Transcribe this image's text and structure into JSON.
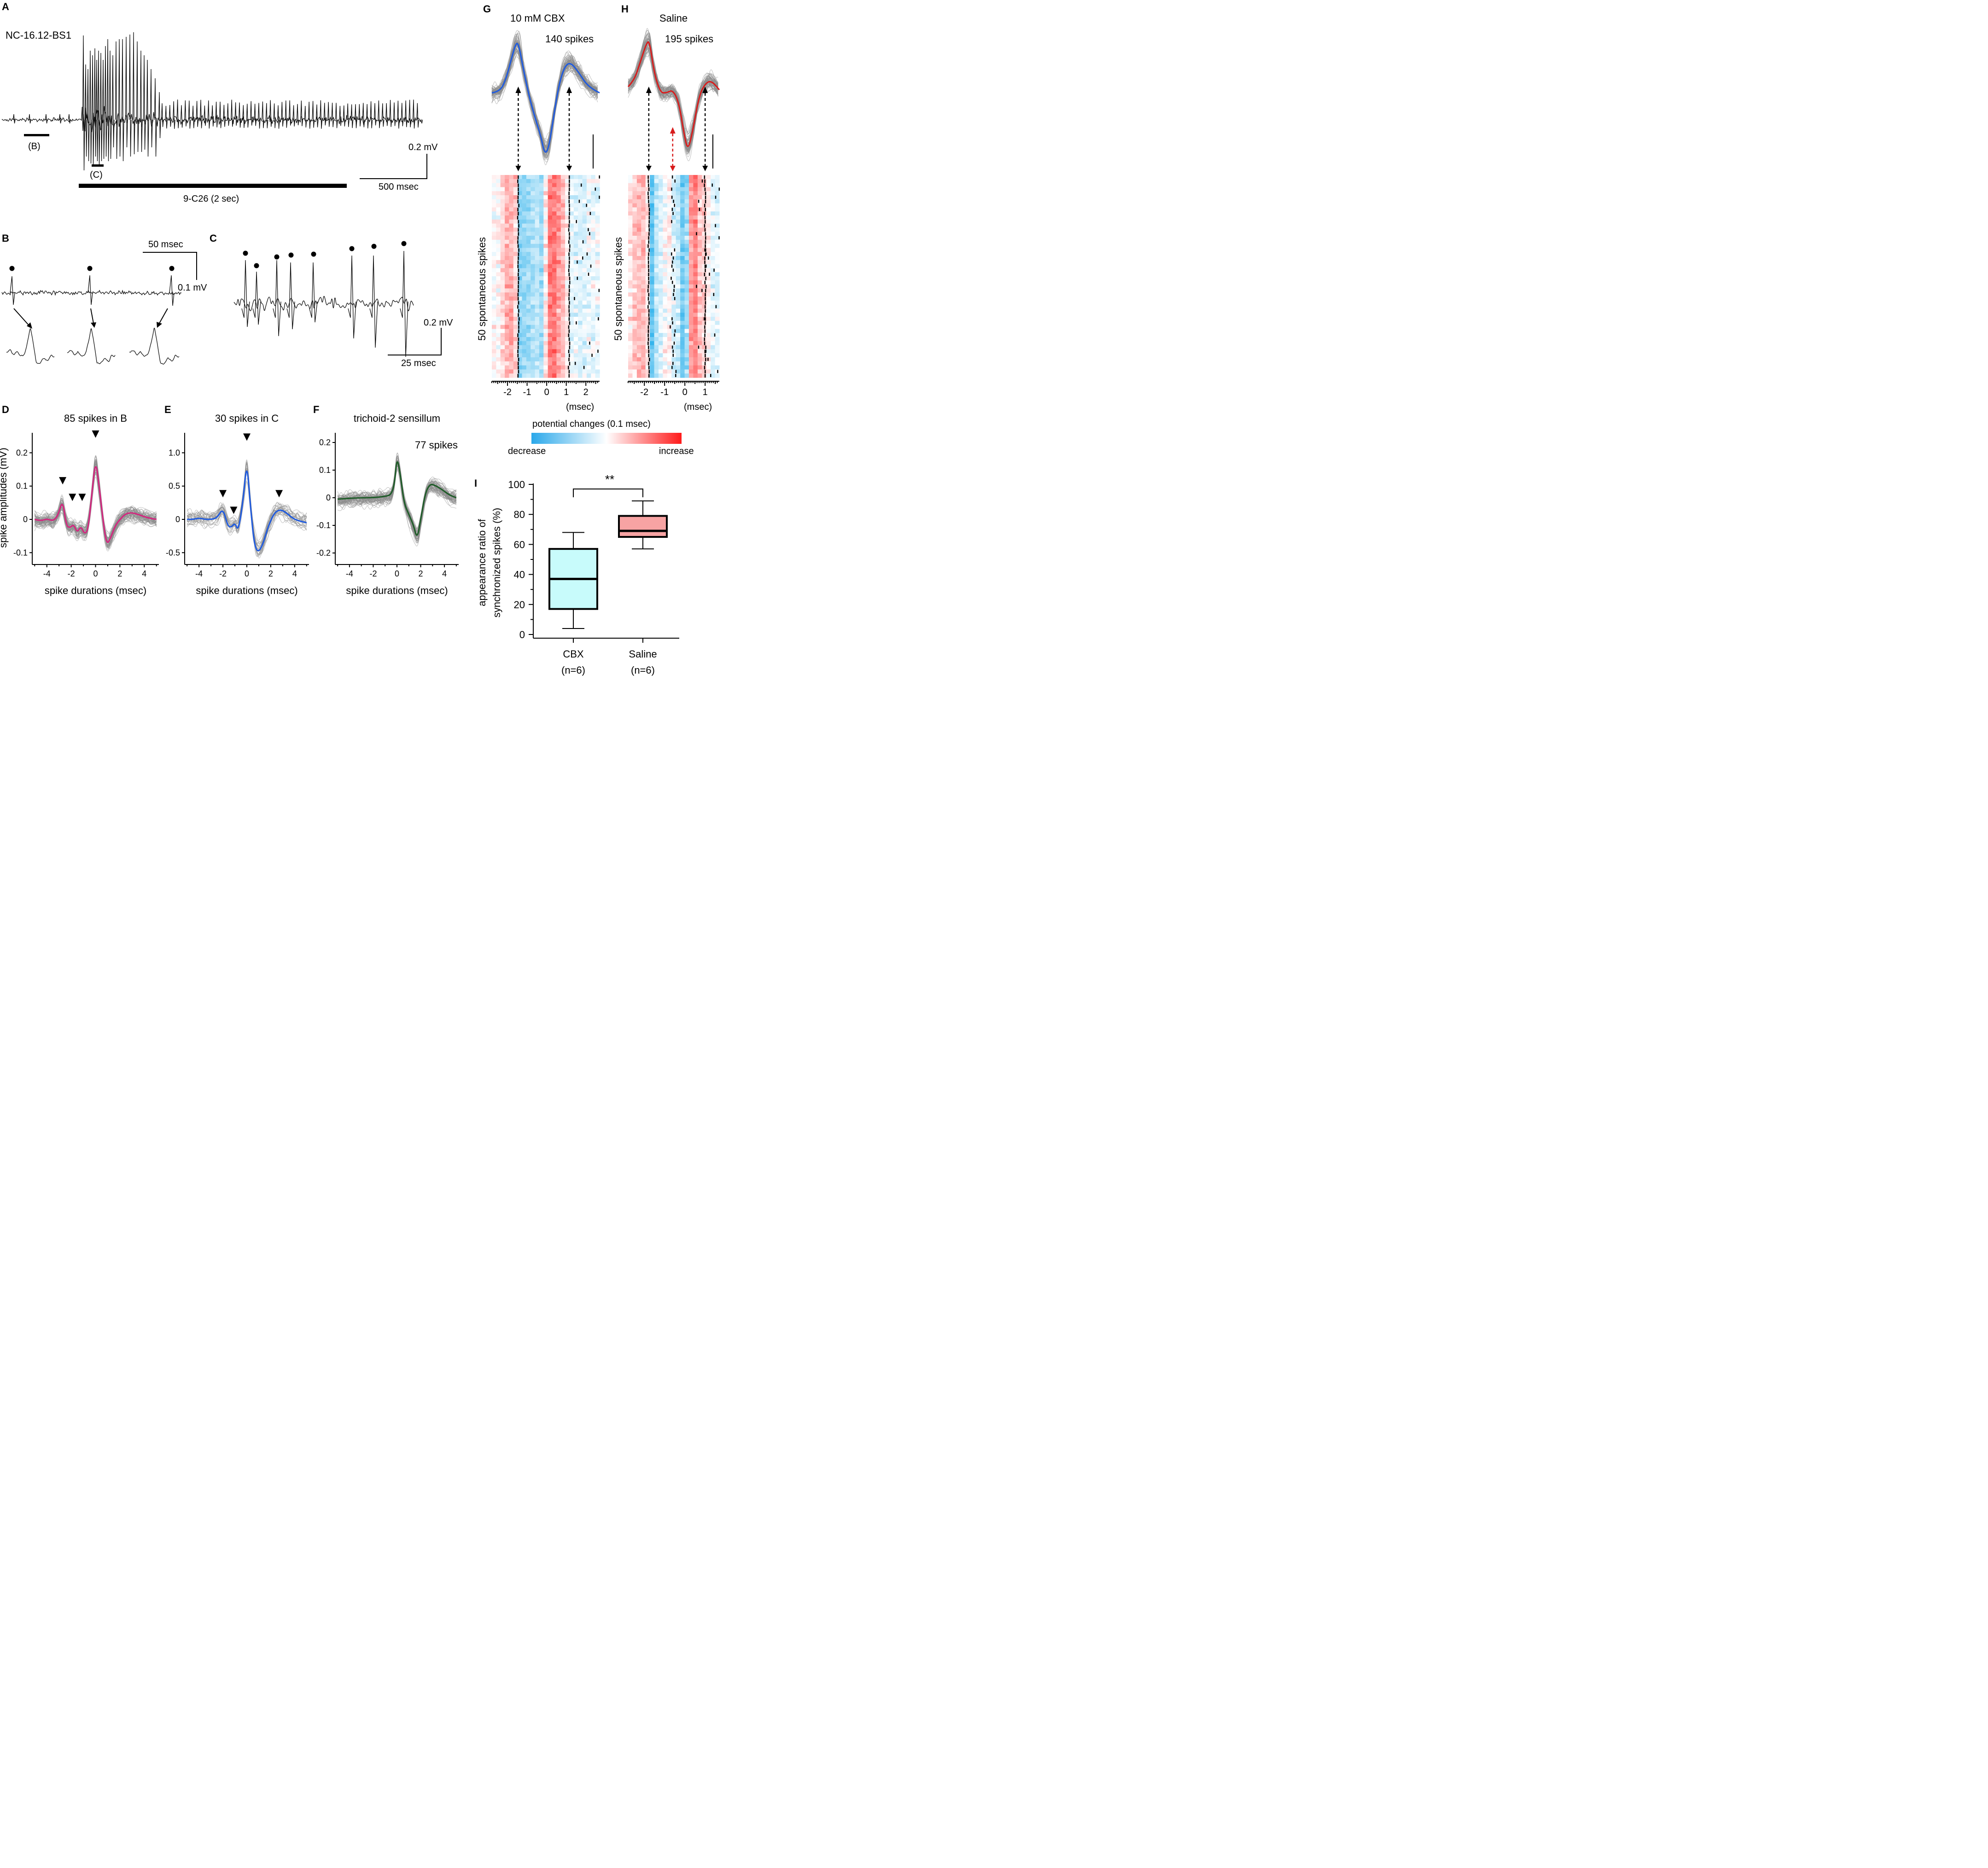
{
  "panel_labels": {
    "A": "A",
    "B": "B",
    "C": "C",
    "D": "D",
    "E": "E",
    "F": "F",
    "G": "G",
    "H": "H",
    "I": "I"
  },
  "panelA": {
    "recording_id": "NC-16.12-BS1",
    "b_label": "(B)",
    "c_label": "(C)",
    "stim_label": "9-C26 (2 sec)",
    "scale_mv": "0.2 mV",
    "scale_ms": "500 msec"
  },
  "panelB": {
    "scale_ms": "50 msec",
    "scale_mv": "0.1 mV"
  },
  "panelC": {
    "scale_mv": "0.2 mV",
    "scale_ms": "25 msec"
  },
  "panelG": {
    "title": "10 mM CBX",
    "count": "140 spikes",
    "ylabel": "50 spontaneous spikes",
    "xunit": "(msec)"
  },
  "panelH": {
    "title": "Saline",
    "count": "195 spikes",
    "ylabel": "50 spontaneous spikes",
    "xunit": "(msec)"
  },
  "colorbar": {
    "title": "potential changes (0.1 msec)",
    "low": "decrease",
    "high": "increase",
    "low_color": "#2aa8ea",
    "high_color": "#ff1a1a"
  },
  "colors": {
    "pink": "#d4267f",
    "blue": "#1f5be0",
    "green": "#1e5c28",
    "red": "#d81c1c",
    "cbx_box": "#c8fbfb",
    "saline_box": "#f7a3a3"
  },
  "chart_data": [
    {
      "id": "D",
      "type": "line",
      "title": "85 spikes in B",
      "xlabel": "spike durations (msec)",
      "ylabel": "spike amplitudes (mV)",
      "xlim": [
        -5.2,
        5.2
      ],
      "ylim": [
        -0.13,
        0.26
      ],
      "xticks": [
        -4,
        -2,
        0,
        2,
        4
      ],
      "xtick_labels": [
        "-4",
        "-2",
        "0",
        "2",
        "4"
      ],
      "yticks": [
        -0.1,
        0,
        0.1,
        0.2
      ],
      "ytick_labels": [
        "-0.1",
        "0",
        "0.1",
        "0.2"
      ],
      "series": [
        {
          "name": "mean",
          "x": [
            -5,
            -4.5,
            -4,
            -3.5,
            -3.1,
            -2.7,
            -2.4,
            -2.1,
            -1.8,
            -1.5,
            -1.2,
            -0.9,
            -0.6,
            -0.3,
            0,
            0.3,
            0.6,
            0.9,
            1.2,
            1.6,
            2,
            2.5,
            3,
            3.5,
            4,
            4.5,
            5
          ],
          "values": [
            0,
            -0.005,
            0.002,
            -0.005,
            0.01,
            0.06,
            -0.02,
            -0.025,
            -0.015,
            -0.04,
            -0.02,
            -0.045,
            -0.03,
            0.08,
            0.18,
            0.1,
            0.0,
            -0.075,
            -0.06,
            -0.02,
            0.0,
            0.018,
            0.02,
            0.015,
            0.008,
            0.003,
            0.0
          ]
        }
      ],
      "arrowheads_x": [
        -2.7,
        -1.9,
        -1.1,
        0
      ],
      "arrowheads_y": [
        0.105,
        0.055,
        0.055,
        0.245
      ]
    },
    {
      "id": "E",
      "type": "line",
      "title": "30 spikes in C",
      "xlabel": "spike durations (msec)",
      "ylabel": "",
      "xlim": [
        -5.2,
        5.2
      ],
      "ylim": [
        -0.65,
        1.3
      ],
      "xticks": [
        -4,
        -2,
        0,
        2,
        4
      ],
      "xtick_labels": [
        "-4",
        "-2",
        "0",
        "2",
        "4"
      ],
      "yticks": [
        -0.5,
        0,
        0.5,
        1.0
      ],
      "ytick_labels": [
        "-0.5",
        "0",
        "0.5",
        "1.0"
      ],
      "series": [
        {
          "name": "mean",
          "x": [
            -5,
            -4.5,
            -4,
            -3.5,
            -3,
            -2.5,
            -2,
            -1.6,
            -1.3,
            -1,
            -0.7,
            -0.3,
            0,
            0.3,
            0.6,
            0.9,
            1.3,
            1.8,
            2.3,
            2.8,
            3.3,
            3.8,
            4.3,
            5
          ],
          "values": [
            0,
            0.0,
            0.02,
            0.0,
            0.0,
            0.02,
            0.17,
            -0.1,
            -0.12,
            -0.05,
            -0.18,
            0.3,
            0.88,
            0.2,
            -0.35,
            -0.5,
            -0.4,
            -0.1,
            0.1,
            0.15,
            0.1,
            0.02,
            -0.02,
            -0.05
          ]
        }
      ],
      "arrowheads_x": [
        -2,
        -1.1,
        0,
        2.7
      ],
      "arrowheads_y": [
        0.33,
        0.08,
        1.18,
        0.33
      ]
    },
    {
      "id": "F",
      "type": "line",
      "title": "trichoid-2 sensillum",
      "annotation": "77 spikes",
      "xlabel": "spike durations (msec)",
      "ylabel": "",
      "xlim": [
        -5.2,
        5.2
      ],
      "ylim": [
        -0.235,
        0.235
      ],
      "xticks": [
        -4,
        -2,
        0,
        2,
        4
      ],
      "xtick_labels": [
        "-4",
        "-2",
        "0",
        "2",
        "4"
      ],
      "yticks": [
        -0.2,
        -0.1,
        0,
        0.1,
        0.2
      ],
      "ytick_labels": [
        "-0.2",
        "-0.1",
        "0",
        "0.1",
        "0.2"
      ],
      "series": [
        {
          "name": "mean",
          "x": [
            -5,
            -4,
            -3,
            -2,
            -1,
            -0.5,
            -0.2,
            0,
            0.3,
            0.6,
            1,
            1.4,
            1.7,
            2,
            2.4,
            2.8,
            3.2,
            3.8,
            4.4,
            5
          ],
          "values": [
            -0.005,
            -0.002,
            0.0,
            0.0,
            0.005,
            0.01,
            0.05,
            0.15,
            0.08,
            -0.02,
            -0.06,
            -0.1,
            -0.15,
            -0.08,
            0.02,
            0.05,
            0.045,
            0.03,
            0.01,
            0.0
          ]
        }
      ]
    },
    {
      "id": "G",
      "type": "line",
      "xlim": [
        -2.8,
        2.7
      ],
      "xticks": [
        -2,
        -1,
        0,
        1,
        2
      ],
      "xtick_labels": [
        "-2",
        "-1",
        "0",
        "1",
        "2"
      ],
      "series": [
        {
          "name": "mean (normalized)",
          "x": [
            -2.8,
            -2.4,
            -2.1,
            -1.8,
            -1.6,
            -1.45,
            -1.2,
            -0.9,
            -0.6,
            -0.3,
            -0.1,
            0.1,
            0.3,
            0.6,
            0.9,
            1.2,
            1.6,
            2.0,
            2.4,
            2.7
          ],
          "values": [
            0.1,
            0.12,
            0.3,
            0.65,
            0.88,
            0.92,
            0.5,
            0.05,
            -0.3,
            -0.6,
            -0.9,
            -0.8,
            -0.4,
            0.2,
            0.52,
            0.6,
            0.45,
            0.25,
            0.15,
            0.1
          ]
        }
      ],
      "arrow_x": [
        -1.45,
        1.15
      ]
    },
    {
      "id": "H",
      "type": "line",
      "xlim": [
        -2.8,
        1.7
      ],
      "xticks": [
        -2,
        -1,
        0,
        1
      ],
      "xtick_labels": [
        "-2",
        "-1",
        "0",
        "1"
      ],
      "series": [
        {
          "name": "mean (normalized)",
          "x": [
            -2.8,
            -2.5,
            -2.2,
            -1.9,
            -1.75,
            -1.5,
            -1.2,
            -0.9,
            -0.6,
            -0.3,
            -0.05,
            0.15,
            0.4,
            0.7,
            1.0,
            1.3,
            1.7
          ],
          "values": [
            0.2,
            0.3,
            0.6,
            0.9,
            0.95,
            0.4,
            0.1,
            0.1,
            0.15,
            -0.05,
            -0.55,
            -0.85,
            -0.5,
            0.05,
            0.25,
            0.3,
            0.15
          ]
        }
      ],
      "arrow_x": [
        -1.78,
        1.0
      ],
      "red_arrow_x": -0.6
    },
    {
      "id": "I",
      "type": "box",
      "ylabel": "appearance ratio of synchronized spikes (%)",
      "ylim": [
        0,
        100
      ],
      "yticks": [
        0,
        20,
        40,
        60,
        80,
        100
      ],
      "ytick_labels": [
        "0",
        "20",
        "40",
        "60",
        "80",
        "100"
      ],
      "categories": [
        "CBX",
        "Saline"
      ],
      "category_sub": [
        "(n=6)",
        "(n=6)"
      ],
      "boxes": [
        {
          "name": "CBX",
          "min": 4,
          "q1": 17,
          "median": 37,
          "q3": 57,
          "max": 68
        },
        {
          "name": "Saline",
          "min": 57,
          "q1": 65,
          "median": 69,
          "q3": 79,
          "max": 89
        }
      ],
      "significance": "**"
    }
  ]
}
